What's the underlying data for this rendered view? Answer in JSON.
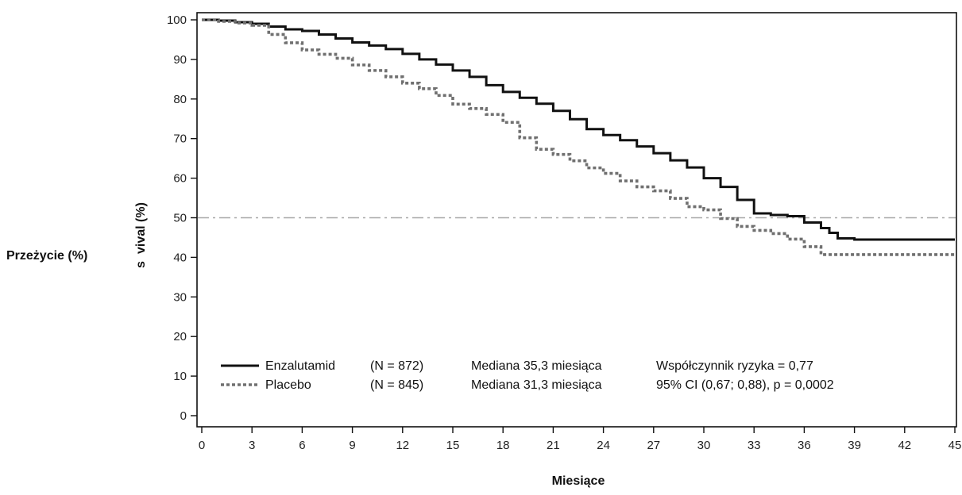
{
  "chart_data": {
    "type": "line",
    "step": true,
    "xlabel": "Miesiące",
    "ylabel": "Przeżycie (%)",
    "ylabel_overlay": "vival (%)",
    "ylabel_overlay_prefix": "s",
    "xlim": [
      0,
      45
    ],
    "ylim": [
      0,
      100
    ],
    "xticks": [
      0,
      3,
      6,
      9,
      12,
      15,
      18,
      21,
      24,
      27,
      30,
      33,
      36,
      39,
      42,
      45
    ],
    "yticks": [
      0,
      10,
      20,
      30,
      40,
      50,
      60,
      70,
      80,
      90,
      100
    ],
    "grid": false,
    "reference_line": {
      "y": 50,
      "style": "dash-dot",
      "color": "#a8a8a8"
    },
    "series": [
      {
        "name": "Enzalutamid",
        "color": "#111111",
        "style": "solid",
        "x": [
          0,
          1,
          2,
          3,
          4,
          5,
          6,
          7,
          8,
          9,
          10,
          11,
          12,
          13,
          14,
          15,
          16,
          17,
          18,
          19,
          20,
          21,
          22,
          23,
          24,
          25,
          26,
          27,
          28,
          29,
          30,
          31,
          32,
          33,
          34,
          35,
          36,
          37,
          37.5,
          38,
          39,
          45
        ],
        "y": [
          100,
          99.8,
          99.4,
          99,
          98.3,
          97.6,
          97.2,
          96.3,
          95.3,
          94.3,
          93.5,
          92.6,
          91.4,
          90,
          88.7,
          87.2,
          85.6,
          83.5,
          81.8,
          80.3,
          78.8,
          77,
          74.9,
          72.4,
          70.9,
          69.6,
          68,
          66.3,
          64.5,
          62.7,
          60,
          57.8,
          54.5,
          51.1,
          50.7,
          50.4,
          48.8,
          47.4,
          46.2,
          44.8,
          44.5,
          44.5
        ]
      },
      {
        "name": "Placebo",
        "color": "#707070",
        "style": "dotted",
        "x": [
          0,
          1,
          2,
          3,
          4,
          5,
          6,
          7,
          8,
          9,
          10,
          11,
          12,
          13,
          14,
          15,
          16,
          17,
          18,
          19,
          20,
          21,
          22,
          23,
          24,
          25,
          26,
          27,
          28,
          29,
          30,
          31,
          32,
          33,
          34,
          35,
          36,
          37,
          45
        ],
        "y": [
          100,
          99.6,
          99.2,
          98.6,
          96.3,
          94.2,
          92.4,
          91.3,
          90.3,
          88.6,
          87.2,
          85.6,
          84,
          82.6,
          80.9,
          78.7,
          77.6,
          76.1,
          74.1,
          70.2,
          67.3,
          66,
          64.4,
          62.6,
          61.2,
          59.3,
          57.8,
          56.8,
          54.9,
          52.8,
          52,
          49.8,
          47.8,
          46.8,
          46,
          44.6,
          42.7,
          40.7,
          40.7
        ]
      }
    ],
    "legend": {
      "placement": "bottom-left",
      "rows": [
        {
          "label": "Enzalutamid",
          "n": "(N = 872)",
          "median": "Mediana 35,3 miesiąca",
          "stat": "Współczynnik ryzyka = 0,77"
        },
        {
          "label": "Placebo",
          "n": "(N = 845)",
          "median": "Mediana 31,3 miesiąca",
          "stat": "95% CI (0,67; 0,88), p = 0,0002"
        }
      ]
    }
  }
}
